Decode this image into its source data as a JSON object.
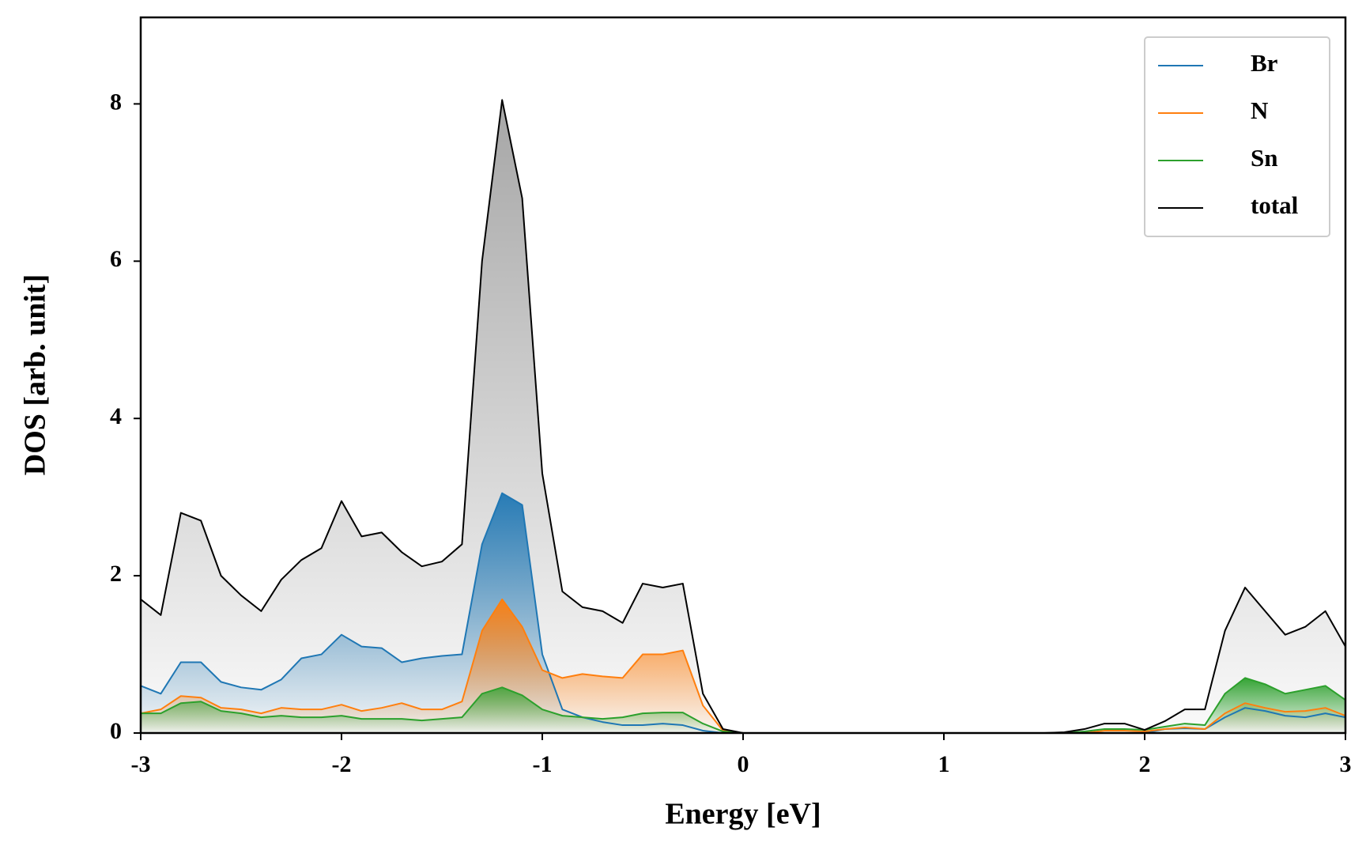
{
  "chart_data": {
    "type": "line",
    "xlabel": "Energy [eV]",
    "ylabel": "DOS [arb. unit]",
    "x": [
      -3,
      -2.9,
      -2.8,
      -2.7,
      -2.6,
      -2.5,
      -2.4,
      -2.3,
      -2.2,
      -2.1,
      -2,
      -1.9,
      -1.8,
      -1.7,
      -1.6,
      -1.5,
      -1.4,
      -1.3,
      -1.2,
      -1.1,
      -1,
      -0.9,
      -0.8,
      -0.7,
      -0.6,
      -0.5,
      -0.4,
      -0.3,
      -0.2,
      -0.1,
      0,
      0.1,
      0.2,
      0.3,
      0.4,
      0.5,
      0.6,
      0.7,
      0.8,
      0.9,
      1,
      1.1,
      1.2,
      1.3,
      1.4,
      1.5,
      1.6,
      1.7,
      1.8,
      1.9,
      2,
      2.1,
      2.2,
      2.3,
      2.4,
      2.5,
      2.6,
      2.7,
      2.8,
      2.9,
      3
    ],
    "series": [
      {
        "name": "Br",
        "color": "#1f77b4",
        "values": [
          0.6,
          0.5,
          0.9,
          0.9,
          0.65,
          0.58,
          0.55,
          0.68,
          0.95,
          1.0,
          1.25,
          1.1,
          1.08,
          0.9,
          0.95,
          0.98,
          1.0,
          2.4,
          3.05,
          2.9,
          1.0,
          0.3,
          0.2,
          0.14,
          0.1,
          0.1,
          0.12,
          0.1,
          0.03,
          0,
          0,
          0,
          0,
          0,
          0,
          0,
          0,
          0,
          0,
          0,
          0,
          0,
          0,
          0,
          0,
          0,
          0,
          0,
          0,
          0,
          0,
          0.05,
          0.06,
          0.05,
          0.2,
          0.32,
          0.28,
          0.22,
          0.2,
          0.25,
          0.2
        ]
      },
      {
        "name": "N",
        "color": "#ff7f0e",
        "values": [
          0.25,
          0.3,
          0.47,
          0.45,
          0.32,
          0.3,
          0.25,
          0.32,
          0.3,
          0.3,
          0.36,
          0.28,
          0.32,
          0.38,
          0.3,
          0.3,
          0.4,
          1.3,
          1.7,
          1.35,
          0.8,
          0.7,
          0.75,
          0.72,
          0.7,
          1.0,
          1.0,
          1.05,
          0.35,
          0.03,
          0,
          0,
          0,
          0,
          0,
          0,
          0,
          0,
          0,
          0,
          0,
          0,
          0,
          0,
          0,
          0,
          0,
          0,
          0.03,
          0.03,
          0.02,
          0.05,
          0.07,
          0.05,
          0.25,
          0.38,
          0.32,
          0.27,
          0.28,
          0.32,
          0.22
        ]
      },
      {
        "name": "Sn",
        "color": "#2ca02c",
        "values": [
          0.25,
          0.25,
          0.38,
          0.4,
          0.28,
          0.25,
          0.2,
          0.22,
          0.2,
          0.2,
          0.22,
          0.18,
          0.18,
          0.18,
          0.16,
          0.18,
          0.2,
          0.5,
          0.58,
          0.48,
          0.3,
          0.22,
          0.2,
          0.18,
          0.2,
          0.25,
          0.26,
          0.26,
          0.12,
          0.02,
          0,
          0,
          0,
          0,
          0,
          0,
          0,
          0,
          0,
          0,
          0,
          0,
          0,
          0,
          0,
          0,
          0,
          0.02,
          0.05,
          0.05,
          0.04,
          0.08,
          0.12,
          0.1,
          0.5,
          0.7,
          0.62,
          0.5,
          0.55,
          0.6,
          0.42
        ]
      },
      {
        "name": "total",
        "color": "#000000",
        "values": [
          1.7,
          1.5,
          2.8,
          2.7,
          2.0,
          1.75,
          1.55,
          1.95,
          2.2,
          2.35,
          2.95,
          2.5,
          2.55,
          2.3,
          2.12,
          2.18,
          2.4,
          6.0,
          8.05,
          6.8,
          3.3,
          1.8,
          1.6,
          1.55,
          1.4,
          1.9,
          1.85,
          1.9,
          0.5,
          0.05,
          0,
          0,
          0,
          0,
          0,
          0,
          0,
          0,
          0,
          0,
          0,
          0,
          0,
          0,
          0,
          0,
          0.01,
          0.05,
          0.12,
          0.12,
          0.04,
          0.15,
          0.3,
          0.3,
          1.3,
          1.85,
          1.55,
          1.25,
          1.35,
          1.55,
          1.1
        ]
      }
    ],
    "xlim": [
      -3,
      3
    ],
    "xticks": [
      -3,
      -2,
      -1,
      0,
      1,
      2,
      3
    ],
    "ylim": [
      0,
      9.1
    ],
    "yticks": [
      0,
      2,
      4,
      6,
      8
    ],
    "legend": "upper right",
    "fill": true
  }
}
